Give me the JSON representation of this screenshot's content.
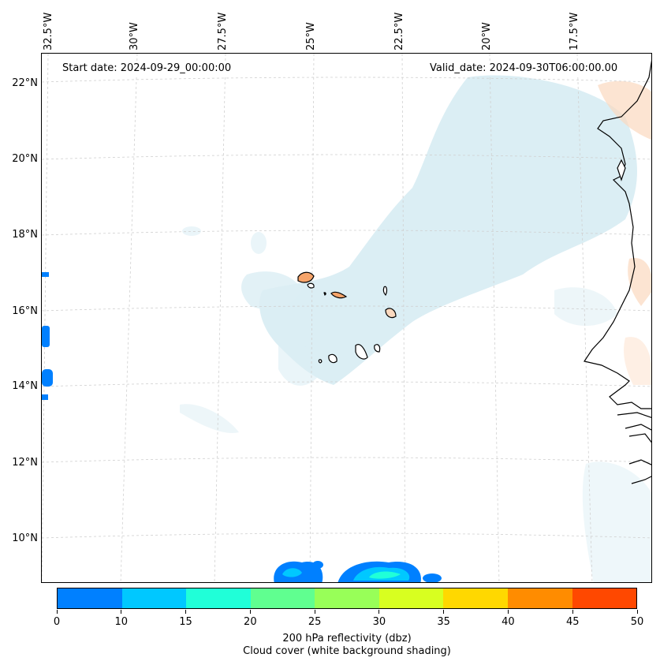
{
  "map": {
    "start_date": "Start date: 2024-09-29_00:00:00",
    "valid_date": "Valid_date: 2024-09-30T06:00:00.00",
    "longitude_labels": [
      "32.5°W",
      "30°W",
      "27.5°W",
      "25°W",
      "22.5°W",
      "20°W",
      "17.5°W"
    ],
    "latitude_labels": [
      "22°N",
      "20°N",
      "18°N",
      "16°N",
      "14°N",
      "12°N",
      "10°N"
    ]
  },
  "colorbar": {
    "ticks": [
      "0",
      "10",
      "15",
      "20",
      "25",
      "30",
      "35",
      "40",
      "45",
      "50"
    ],
    "colors": [
      "#0080ff",
      "#00c8ff",
      "#20ffd8",
      "#60ff90",
      "#98ff58",
      "#d8ff20",
      "#ffd800",
      "#ff8c00",
      "#ff4800"
    ],
    "label_line1": "200 hPa reflectivity (dbz)",
    "label_line2": "Cloud cover (white background shading)"
  },
  "colors": {
    "cloud_blue": "#cfe8f0",
    "land_dry": "#f6a46a",
    "land_light": "#fbd9bf",
    "coast": "#000000",
    "grid": "#d0d0d0"
  }
}
